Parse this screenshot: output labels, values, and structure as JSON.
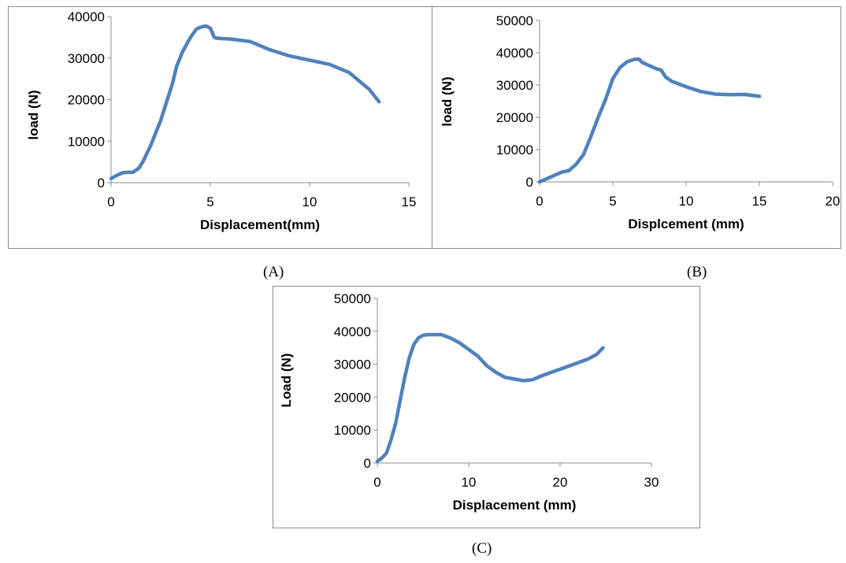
{
  "line_color": "#4F81BD",
  "chart_data": [
    {
      "type": "line",
      "caption": "(A)",
      "xlabel": "Displacement(mm)",
      "ylabel": "load (N)",
      "xlim": [
        0,
        15
      ],
      "ylim": [
        0,
        40000
      ],
      "xticks": [
        0,
        5,
        10,
        15
      ],
      "yticks": [
        0,
        10000,
        20000,
        30000,
        40000
      ],
      "grid": false,
      "series": [
        {
          "x": [
            0,
            0.3,
            0.6,
            0.9,
            1.1,
            1.4,
            1.6,
            2.0,
            2.5,
            2.9,
            3.1,
            3.3,
            3.6,
            4.0,
            4.3,
            4.6,
            4.8,
            5.0,
            5.2,
            5.3,
            5.6,
            6.0,
            7.0,
            7.5,
            8.0,
            9.0,
            10.0,
            11.0,
            12.0,
            12.5,
            13.0,
            13.5
          ],
          "y": [
            1000,
            1800,
            2400,
            2500,
            2500,
            3500,
            5000,
            9000,
            15000,
            21000,
            24000,
            28000,
            31500,
            35000,
            37000,
            37600,
            37700,
            37200,
            35000,
            34800,
            34700,
            34600,
            34000,
            33000,
            32000,
            30500,
            29500,
            28500,
            26500,
            24500,
            22500,
            19500
          ]
        }
      ]
    },
    {
      "type": "line",
      "caption": "(B)",
      "xlabel": "Displcement (mm)",
      "ylabel": "load (N)",
      "xlim": [
        0,
        20
      ],
      "ylim": [
        0,
        50000
      ],
      "xticks": [
        0,
        5,
        10,
        15,
        20
      ],
      "yticks": [
        0,
        10000,
        20000,
        30000,
        40000,
        50000
      ],
      "grid": false,
      "series": [
        {
          "x": [
            0,
            0.5,
            1.0,
            1.5,
            2.0,
            2.5,
            3.0,
            3.5,
            4.0,
            4.5,
            5.0,
            5.5,
            6.0,
            6.5,
            6.8,
            7.0,
            7.5,
            8.0,
            8.3,
            8.6,
            9.0,
            10.0,
            11.0,
            12.0,
            13.0,
            14.0,
            15.0
          ],
          "y": [
            0,
            1000,
            2000,
            3000,
            3500,
            5500,
            8500,
            14000,
            20000,
            25500,
            32000,
            35500,
            37300,
            38000,
            38000,
            37000,
            36000,
            35000,
            34600,
            32500,
            31200,
            29500,
            28000,
            27200,
            27000,
            27100,
            26500
          ]
        }
      ]
    },
    {
      "type": "line",
      "caption": "(C)",
      "xlabel": "Displacement (mm)",
      "ylabel": "Load (N)",
      "xlim": [
        0,
        30
      ],
      "ylim": [
        0,
        50000
      ],
      "xticks": [
        0,
        10,
        20,
        30
      ],
      "yticks": [
        0,
        10000,
        20000,
        30000,
        40000,
        50000
      ],
      "grid": false,
      "series": [
        {
          "x": [
            0,
            0.5,
            1.0,
            1.5,
            2.0,
            2.5,
            3.0,
            3.5,
            4.0,
            4.5,
            5.0,
            5.5,
            6.0,
            7.0,
            8.0,
            9.0,
            10.0,
            11.0,
            12.0,
            13.0,
            14.0,
            15.0,
            16.0,
            17.0,
            18.0,
            19.0,
            20.0,
            21.0,
            22.0,
            23.0,
            24.0,
            24.7
          ],
          "y": [
            500,
            1500,
            3000,
            7000,
            12000,
            19000,
            26000,
            32000,
            36000,
            38000,
            38800,
            39000,
            39000,
            39000,
            38000,
            36500,
            34500,
            32500,
            29500,
            27500,
            26000,
            25500,
            25000,
            25300,
            26500,
            27500,
            28500,
            29500,
            30500,
            31500,
            33000,
            35000
          ]
        }
      ]
    }
  ]
}
